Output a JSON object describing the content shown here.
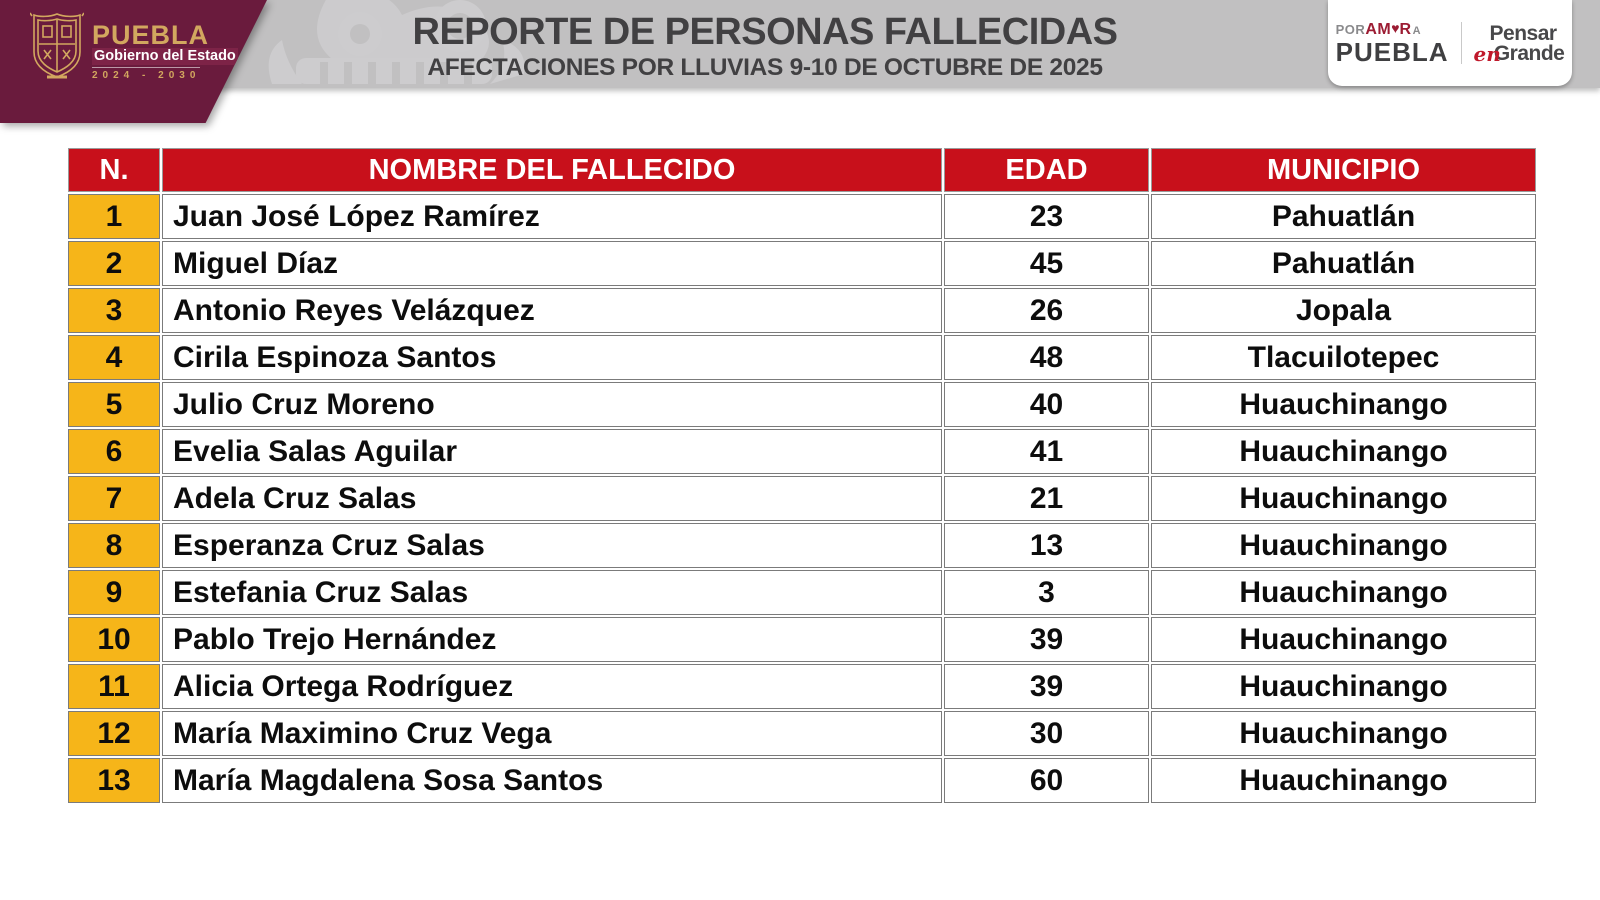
{
  "header": {
    "bar_color": "#c1c0c1",
    "government_logo": {
      "brand": "PUEBLA",
      "tagline": "Gobierno del Estado",
      "period": "2024 - 2030",
      "background_color": "#6a1b3d",
      "gold_color": "#d2a75f"
    },
    "title": "REPORTE DE PERSONAS FALLECIDAS",
    "subtitle": "AFECTACIONES POR LLUVIAS 9-10 DE OCTUBRE DE 2025",
    "title_color": "#414042",
    "brand_badge": {
      "por": "POR",
      "amor_first": "AM",
      "amor_last": "R",
      "a_small": "A",
      "puebla": "PUEBLA",
      "pensar": "Pensar",
      "en": "en",
      "grande": "Grande",
      "red_color": "#9c1c33",
      "dark_color": "#48484a"
    }
  },
  "table": {
    "header_background": "#c8101b",
    "number_column_background": "#f6b519",
    "columns": [
      "N.",
      "NOMBRE DEL FALLECIDO",
      "EDAD",
      "MUNICIPIO"
    ],
    "rows": [
      {
        "n": "1",
        "nombre": "Juan José López Ramírez",
        "edad": "23",
        "municipio": "Pahuatlán"
      },
      {
        "n": "2",
        "nombre": "Miguel Díaz",
        "edad": "45",
        "municipio": "Pahuatlán"
      },
      {
        "n": "3",
        "nombre": "Antonio Reyes Velázquez",
        "edad": "26",
        "municipio": "Jopala"
      },
      {
        "n": "4",
        "nombre": "Cirila Espinoza Santos",
        "edad": "48",
        "municipio": "Tlacuilotepec"
      },
      {
        "n": "5",
        "nombre": "Julio Cruz Moreno",
        "edad": "40",
        "municipio": "Huauchinango"
      },
      {
        "n": "6",
        "nombre": "Evelia Salas Aguilar",
        "edad": "41",
        "municipio": "Huauchinango"
      },
      {
        "n": "7",
        "nombre": "Adela Cruz Salas",
        "edad": "21",
        "municipio": "Huauchinango"
      },
      {
        "n": "8",
        "nombre": "Esperanza Cruz Salas",
        "edad": "13",
        "municipio": "Huauchinango"
      },
      {
        "n": "9",
        "nombre": "Estefania Cruz Salas",
        "edad": "3",
        "municipio": "Huauchinango"
      },
      {
        "n": "10",
        "nombre": "Pablo Trejo Hernández",
        "edad": "39",
        "municipio": "Huauchinango"
      },
      {
        "n": "11",
        "nombre": "Alicia Ortega Rodríguez",
        "edad": "39",
        "municipio": "Huauchinango"
      },
      {
        "n": "12",
        "nombre": "María Maximino Cruz Vega",
        "edad": "30",
        "municipio": "Huauchinango"
      },
      {
        "n": "13",
        "nombre": "María Magdalena Sosa Santos",
        "edad": "60",
        "municipio": "Huauchinango"
      }
    ]
  }
}
